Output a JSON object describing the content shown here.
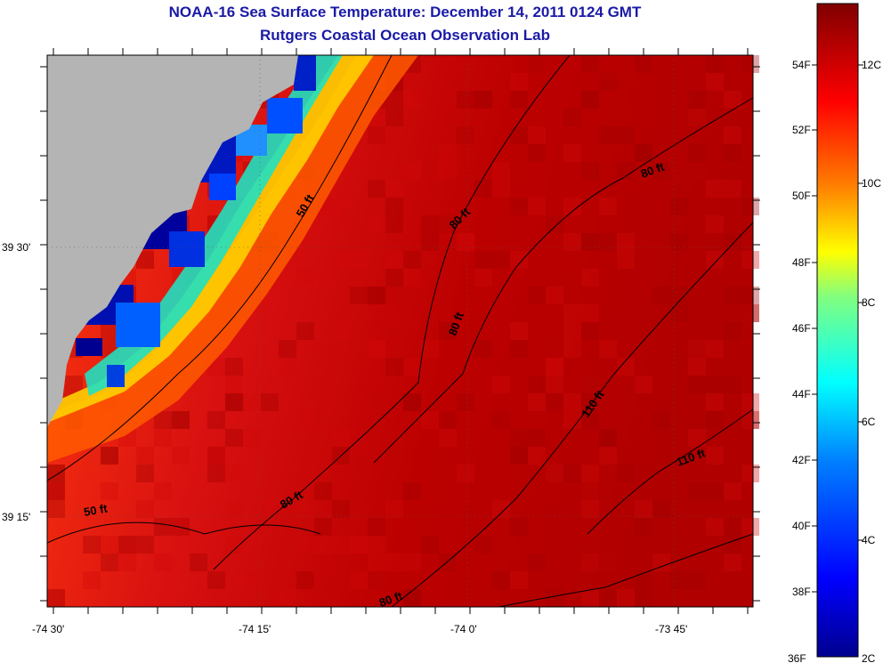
{
  "title": {
    "line1": "NOAA-16 Sea Surface Temperature:  December 14, 2011 0124 GMT",
    "line2": "Rutgers Coastal Ocean Observation Lab"
  },
  "map": {
    "lat_labels": [
      "39 30'",
      "39 15'"
    ],
    "lon_labels": [
      "-74 30'",
      "-74 15'",
      "-74 0'",
      "-73 45'"
    ],
    "contour_labels": [
      "50 ft",
      "80 ft",
      "80 ft",
      "80 ft",
      "110 ft",
      "110 ft",
      "50 ft",
      "80 ft",
      "80 ft"
    ],
    "colors": {
      "land": "#b4b4b4",
      "ocean_warm": "#b80000",
      "ocean_mid": "#e01010",
      "coastal_cold": "#00008c"
    }
  },
  "colorbar": {
    "fahrenheit_labels": [
      "54F",
      "52F",
      "50F",
      "48F",
      "46F",
      "44F",
      "42F",
      "40F",
      "38F",
      "36F"
    ],
    "celsius_labels": [
      "12C",
      "10C",
      "8C",
      "6C",
      "4C",
      "2C"
    ]
  }
}
